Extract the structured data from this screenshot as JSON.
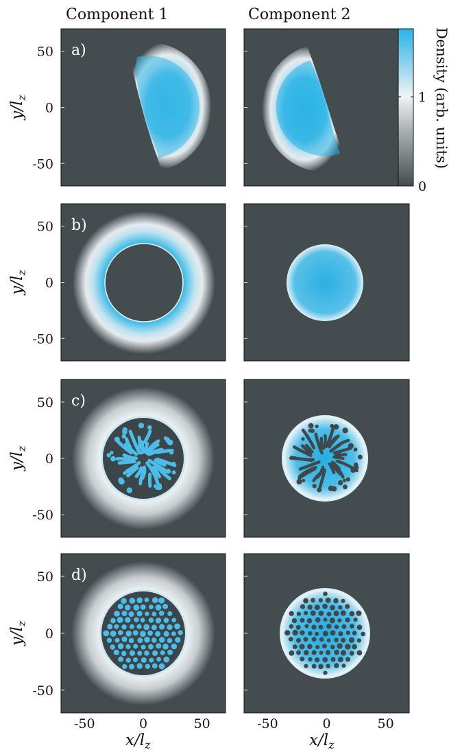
{
  "figure": {
    "column_titles": [
      "Component 1",
      "Component 2"
    ],
    "row_labels": [
      "a)",
      "b)",
      "c)",
      "d)"
    ],
    "y_axis_label": "y/l",
    "y_axis_label_sub": "z",
    "x_axis_label": "x/l",
    "x_axis_label_sub": "z",
    "x_ticks": [
      "-50",
      "0",
      "50"
    ],
    "y_ticks": [
      "50",
      "0",
      "-50"
    ],
    "colorbar": {
      "label": "Density (arb. units)",
      "ticks": [
        "1",
        "0"
      ]
    }
  },
  "colors": {
    "background": "#434d4f",
    "low": "#434d4f",
    "mid": "#f2f4f5",
    "high": "#2ab4e6"
  }
}
